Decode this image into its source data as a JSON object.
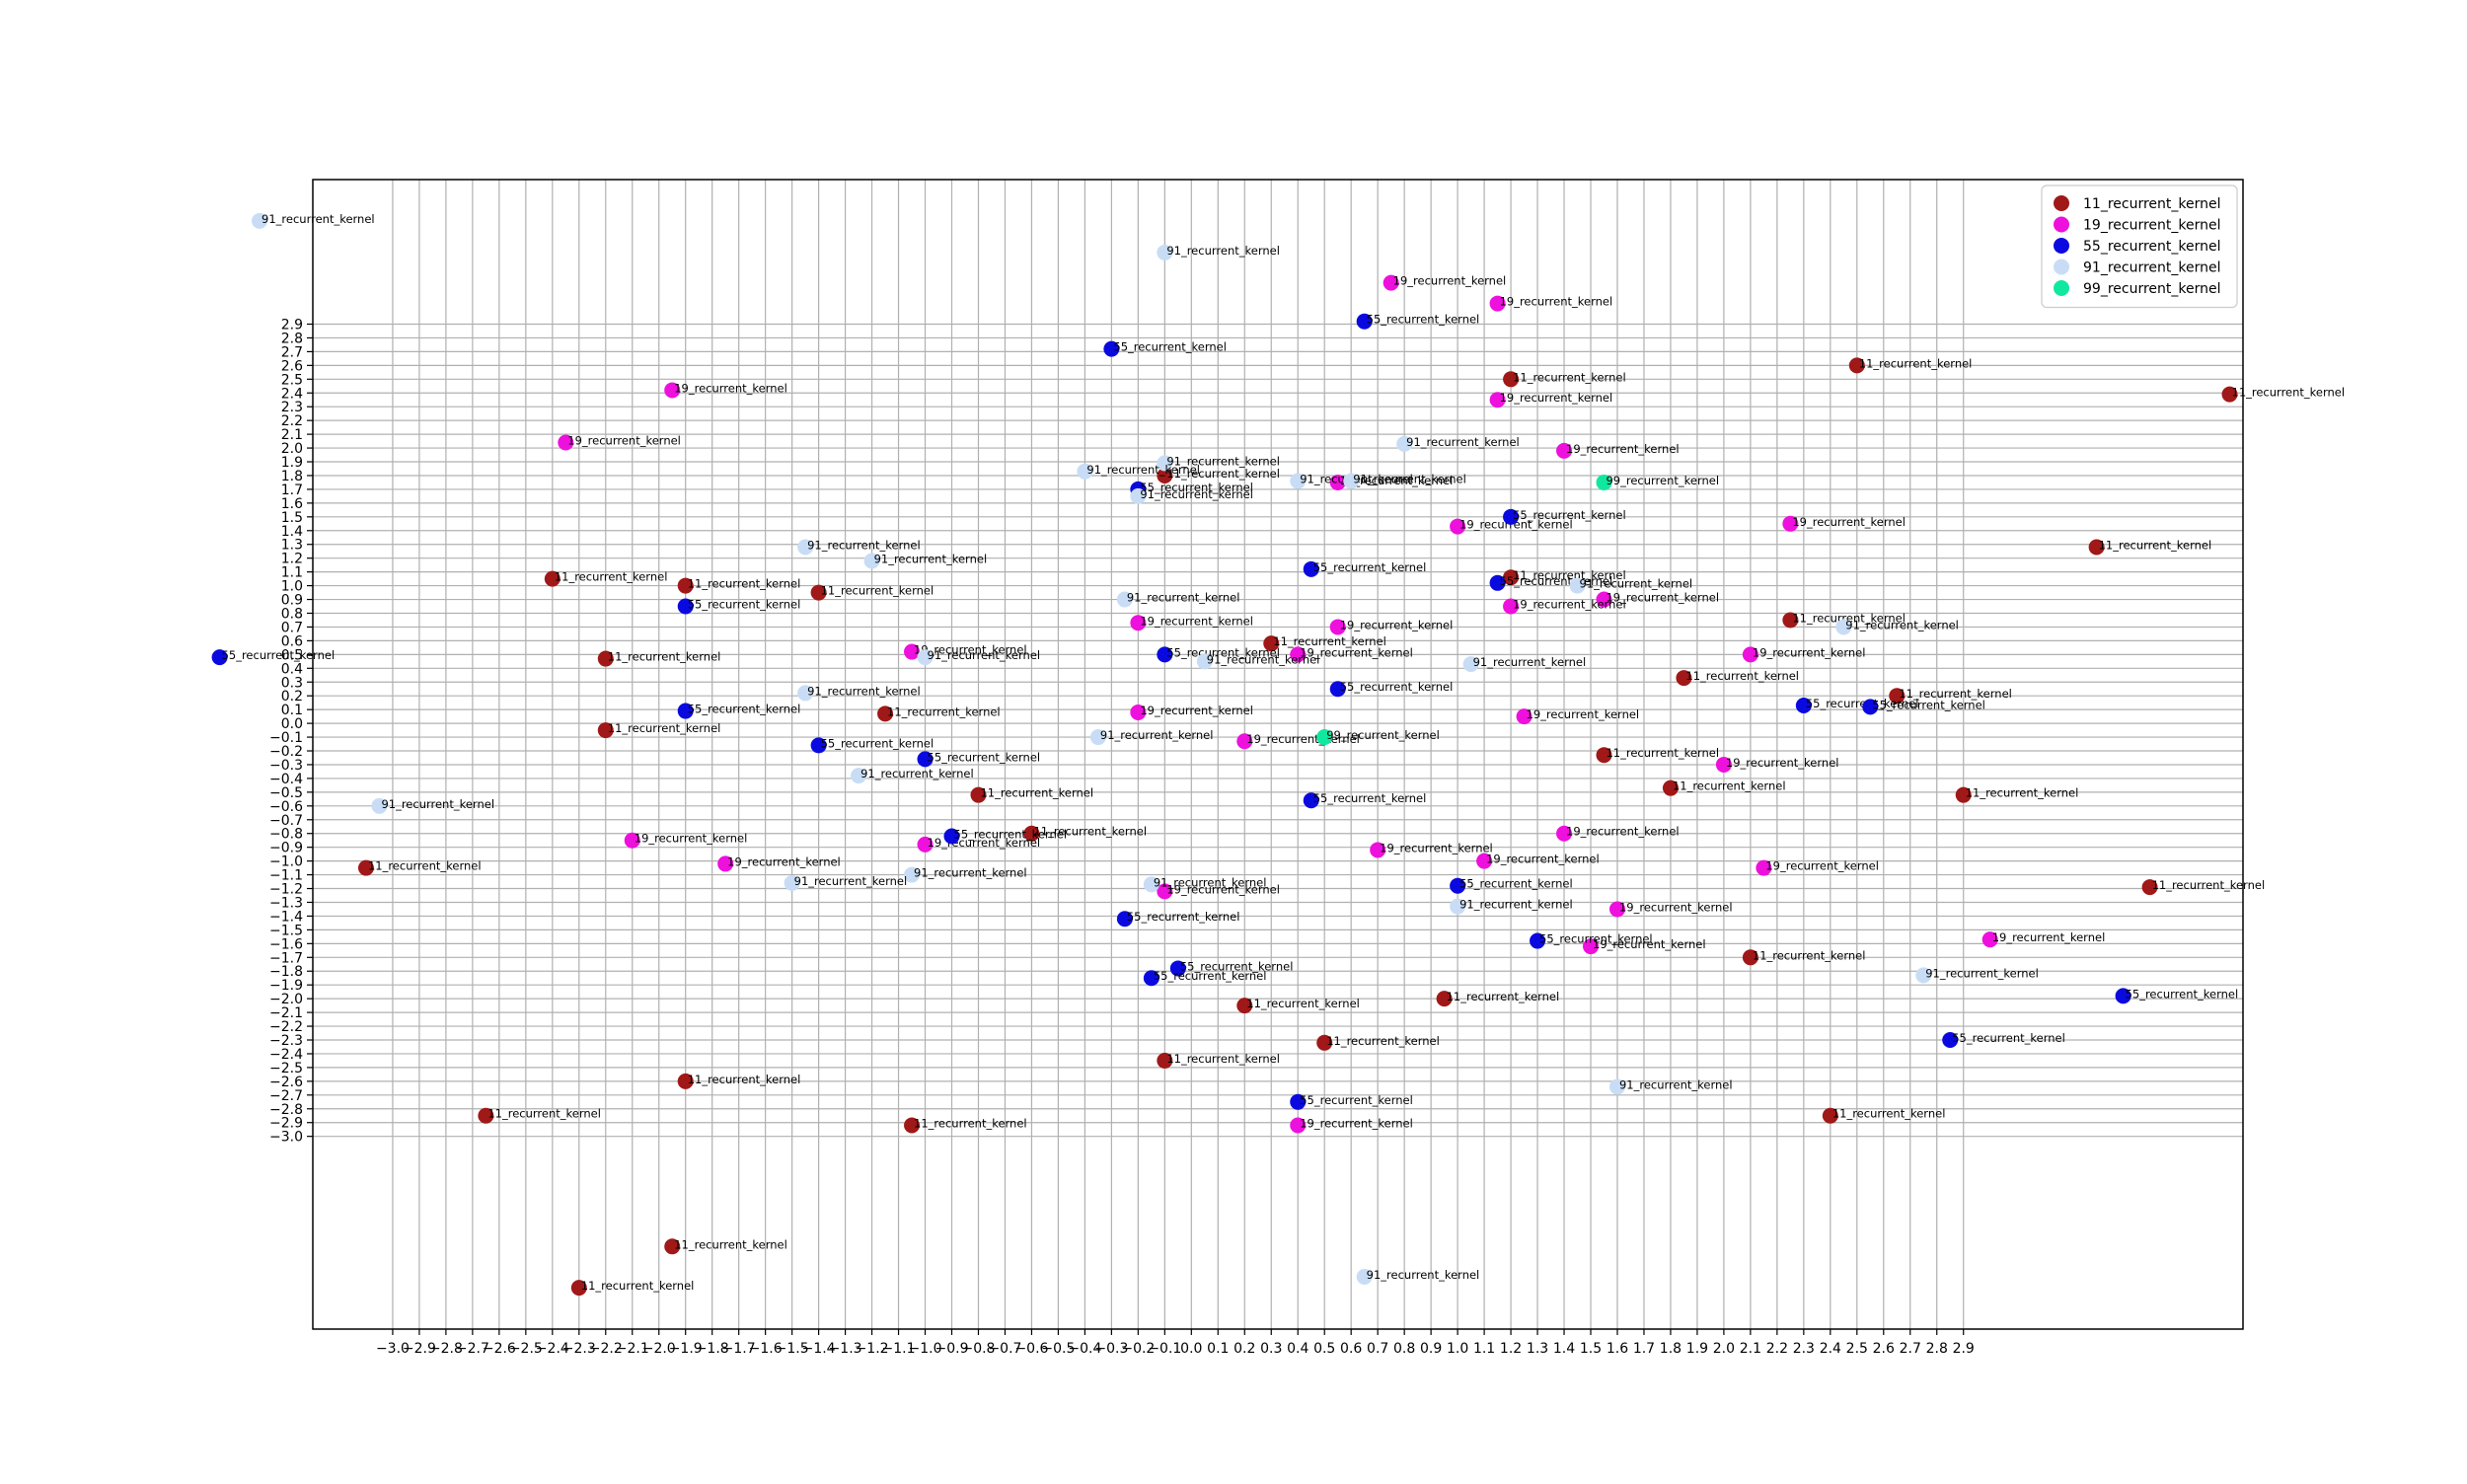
{
  "chart_data": {
    "type": "scatter",
    "title": "",
    "xlabel": "",
    "ylabel": "",
    "xlim": [
      -3.3,
      3.95
    ],
    "ylim": [
      -4.4,
      3.95
    ],
    "grid": true,
    "legend_position": "top-right",
    "point_label_suffix": "recurrent_kernel",
    "x_ticks": [
      -3.0,
      -2.9,
      -2.8,
      -2.7,
      -2.6,
      -2.5,
      -2.4,
      -2.3,
      -2.2,
      -2.1,
      -2.0,
      -1.9,
      -1.8,
      -1.7,
      -1.6,
      -1.5,
      -1.4,
      -1.3,
      -1.2,
      -1.1,
      -1.0,
      -0.9,
      -0.8,
      -0.7,
      -0.6,
      -0.5,
      -0.4,
      -0.3,
      -0.2,
      -0.1,
      0.0,
      0.1,
      0.2,
      0.3,
      0.4,
      0.5,
      0.6,
      0.7,
      0.8,
      0.9,
      1.0,
      1.1,
      1.2,
      1.3,
      1.4,
      1.5,
      1.6,
      1.7,
      1.8,
      1.9,
      2.0,
      2.1,
      2.2,
      2.3,
      2.4,
      2.5,
      2.6,
      2.7,
      2.8,
      2.9
    ],
    "x_tick_labels": [
      "−3.0",
      "−2.9",
      "−2.8",
      "−2.7",
      "−2.6",
      "−2.5",
      "−2.4",
      "−2.3",
      "−2.2",
      "−2.1",
      "−2.0",
      "−1.9",
      "−1.8",
      "−1.7",
      "−1.6",
      "−1.5",
      "−1.4",
      "−1.3",
      "−1.2",
      "−1.1",
      "−1.0",
      "−0.9",
      "−0.8",
      "−0.7",
      "−0.6",
      "−0.5",
      "−0.4",
      "−0.3",
      "−0.2",
      "−0.1",
      "0.0",
      "0.1",
      "0.2",
      "0.3",
      "0.4",
      "0.5",
      "0.6",
      "0.7",
      "0.8",
      "0.9",
      "1.0",
      "1.1",
      "1.2",
      "1.3",
      "1.4",
      "1.5",
      "1.6",
      "1.7",
      "1.8",
      "1.9",
      "2.0",
      "2.1",
      "2.2",
      "2.3",
      "2.4",
      "2.5",
      "2.6",
      "2.7",
      "2.8",
      "2.9"
    ],
    "y_ticks": [
      -3.0,
      -2.9,
      -2.8,
      -2.7,
      -2.6,
      -2.5,
      -2.4,
      -2.3,
      -2.2,
      -2.1,
      -2.0,
      -1.9,
      -1.8,
      -1.7,
      -1.6,
      -1.5,
      -1.4,
      -1.3,
      -1.2,
      -1.1,
      -1.0,
      -0.9,
      -0.8,
      -0.7,
      -0.6,
      -0.5,
      -0.4,
      -0.3,
      -0.2,
      -0.1,
      0.0,
      0.1,
      0.2,
      0.3,
      0.4,
      0.5,
      0.6,
      0.7,
      0.8,
      0.9,
      1.0,
      1.1,
      1.2,
      1.3,
      1.4,
      1.5,
      1.6,
      1.7,
      1.8,
      1.9,
      2.0,
      2.1,
      2.2,
      2.3,
      2.4,
      2.5,
      2.6,
      2.7,
      2.8,
      2.9
    ],
    "y_tick_labels": [
      "−3.0",
      "−2.9",
      "−2.8",
      "−2.7",
      "−2.6",
      "−2.5",
      "−2.4",
      "−2.3",
      "−2.2",
      "−2.1",
      "−2.0",
      "−1.9",
      "−1.8",
      "−1.7",
      "−1.6",
      "−1.5",
      "−1.4",
      "−1.3",
      "−1.2",
      "−1.1",
      "−1.0",
      "−0.9",
      "−0.8",
      "−0.7",
      "−0.6",
      "−0.5",
      "−0.4",
      "−0.3",
      "−0.2",
      "−0.1",
      "0.0",
      "0.1",
      "0.2",
      "0.3",
      "0.4",
      "0.5",
      "0.6",
      "0.7",
      "0.8",
      "0.9",
      "1.0",
      "1.1",
      "1.2",
      "1.3",
      "1.4",
      "1.5",
      "1.6",
      "1.7",
      "1.8",
      "1.9",
      "2.0",
      "2.1",
      "2.2",
      "2.3",
      "2.4",
      "2.5",
      "2.6",
      "2.7",
      "2.8",
      "2.9"
    ],
    "series": [
      {
        "name": "11_recurrent_kernel",
        "color": "#a01818",
        "point_label": "11_recurrent_kernel",
        "points": [
          [
            -0.1,
            1.8
          ],
          [
            1.2,
            2.5
          ],
          [
            2.5,
            2.6
          ],
          [
            3.9,
            2.39
          ],
          [
            3.4,
            1.28
          ],
          [
            -2.4,
            1.05
          ],
          [
            -1.9,
            1.0
          ],
          [
            -1.4,
            0.95
          ],
          [
            1.2,
            1.06
          ],
          [
            2.25,
            0.75
          ],
          [
            -2.2,
            0.47
          ],
          [
            0.3,
            0.58
          ],
          [
            1.85,
            0.33
          ],
          [
            2.65,
            0.2
          ],
          [
            -1.15,
            0.07
          ],
          [
            -2.2,
            -0.05
          ],
          [
            1.55,
            -0.23
          ],
          [
            1.8,
            -0.47
          ],
          [
            2.9,
            -0.52
          ],
          [
            -0.8,
            -0.52
          ],
          [
            -0.6,
            -0.8
          ],
          [
            -3.1,
            -1.05
          ],
          [
            3.6,
            -1.19
          ],
          [
            2.1,
            -1.7
          ],
          [
            0.95,
            -2.0
          ],
          [
            0.2,
            -2.05
          ],
          [
            0.5,
            -2.32
          ],
          [
            -0.1,
            -2.45
          ],
          [
            -1.9,
            -2.6
          ],
          [
            -2.65,
            -2.85
          ],
          [
            -1.05,
            -2.92
          ],
          [
            2.4,
            -2.85
          ],
          [
            -1.95,
            -3.8
          ],
          [
            -2.3,
            -4.1
          ]
        ]
      },
      {
        "name": "19_recurrent_kernel",
        "color": "#ee10dd",
        "point_label": "19_recurrent_kernel",
        "points": [
          [
            0.75,
            3.2
          ],
          [
            1.15,
            3.05
          ],
          [
            -1.95,
            2.42
          ],
          [
            1.15,
            2.35
          ],
          [
            -2.35,
            2.04
          ],
          [
            1.4,
            1.98
          ],
          [
            0.55,
            1.75
          ],
          [
            1.0,
            1.43
          ],
          [
            2.25,
            1.45
          ],
          [
            1.55,
            0.9
          ],
          [
            -0.2,
            0.73
          ],
          [
            0.55,
            0.7
          ],
          [
            1.2,
            0.85
          ],
          [
            2.1,
            0.5
          ],
          [
            -1.05,
            0.52
          ],
          [
            0.4,
            0.5
          ],
          [
            -0.2,
            0.08
          ],
          [
            1.25,
            0.05
          ],
          [
            0.2,
            -0.13
          ],
          [
            2.0,
            -0.3
          ],
          [
            1.4,
            -0.8
          ],
          [
            -2.1,
            -0.85
          ],
          [
            -1.0,
            -0.88
          ],
          [
            0.7,
            -0.92
          ],
          [
            1.1,
            -1.0
          ],
          [
            -1.75,
            -1.02
          ],
          [
            2.15,
            -1.05
          ],
          [
            -0.1,
            -1.22
          ],
          [
            1.6,
            -1.35
          ],
          [
            3.0,
            -1.57
          ],
          [
            1.5,
            -1.62
          ],
          [
            0.4,
            -2.92
          ]
        ]
      },
      {
        "name": "55_recurrent_kernel",
        "color": "#0a0ae0",
        "point_label": "55_recurrent_kernel",
        "points": [
          [
            0.65,
            2.92
          ],
          [
            -0.3,
            2.72
          ],
          [
            -0.2,
            1.7
          ],
          [
            1.2,
            1.5
          ],
          [
            0.45,
            1.12
          ],
          [
            1.15,
            1.02
          ],
          [
            -1.9,
            0.85
          ],
          [
            -3.65,
            0.48
          ],
          [
            -0.1,
            0.5
          ],
          [
            0.55,
            0.25
          ],
          [
            2.3,
            0.13
          ],
          [
            2.55,
            0.12
          ],
          [
            -1.9,
            0.09
          ],
          [
            -1.4,
            -0.16
          ],
          [
            -1.0,
            -0.26
          ],
          [
            -0.9,
            -0.82
          ],
          [
            0.45,
            -0.56
          ],
          [
            1.0,
            -1.18
          ],
          [
            -0.25,
            -1.42
          ],
          [
            1.3,
            -1.58
          ],
          [
            -0.05,
            -1.78
          ],
          [
            -0.15,
            -1.85
          ],
          [
            3.5,
            -1.98
          ],
          [
            2.85,
            -2.3
          ],
          [
            0.4,
            -2.75
          ]
        ]
      },
      {
        "name": "91_recurrent_kernel",
        "color": "#c8ddf5",
        "point_label": "91_recurrent_kernel",
        "points": [
          [
            -3.5,
            3.65
          ],
          [
            -0.1,
            3.42
          ],
          [
            0.8,
            2.03
          ],
          [
            -0.1,
            1.89
          ],
          [
            -0.4,
            1.83
          ],
          [
            0.4,
            1.76
          ],
          [
            0.6,
            1.76
          ],
          [
            -0.2,
            1.65
          ],
          [
            -1.45,
            1.28
          ],
          [
            -1.2,
            1.18
          ],
          [
            -0.25,
            0.9
          ],
          [
            1.45,
            1.0
          ],
          [
            2.45,
            0.7
          ],
          [
            -1.0,
            0.48
          ],
          [
            0.05,
            0.45
          ],
          [
            1.05,
            0.43
          ],
          [
            -1.45,
            0.22
          ],
          [
            -0.35,
            -0.1
          ],
          [
            -1.25,
            -0.38
          ],
          [
            -3.05,
            -0.6
          ],
          [
            -1.05,
            -1.1
          ],
          [
            -1.5,
            -1.16
          ],
          [
            -0.15,
            -1.17
          ],
          [
            1.0,
            -1.33
          ],
          [
            2.75,
            -1.83
          ],
          [
            1.6,
            -2.64
          ],
          [
            0.65,
            -4.02
          ]
        ]
      },
      {
        "name": "99_recurrent_kernel",
        "color": "#10e8a0",
        "point_label": "99_recurrent_kernel",
        "points": [
          [
            1.55,
            1.75
          ],
          [
            0.5,
            -0.1
          ]
        ]
      }
    ]
  }
}
